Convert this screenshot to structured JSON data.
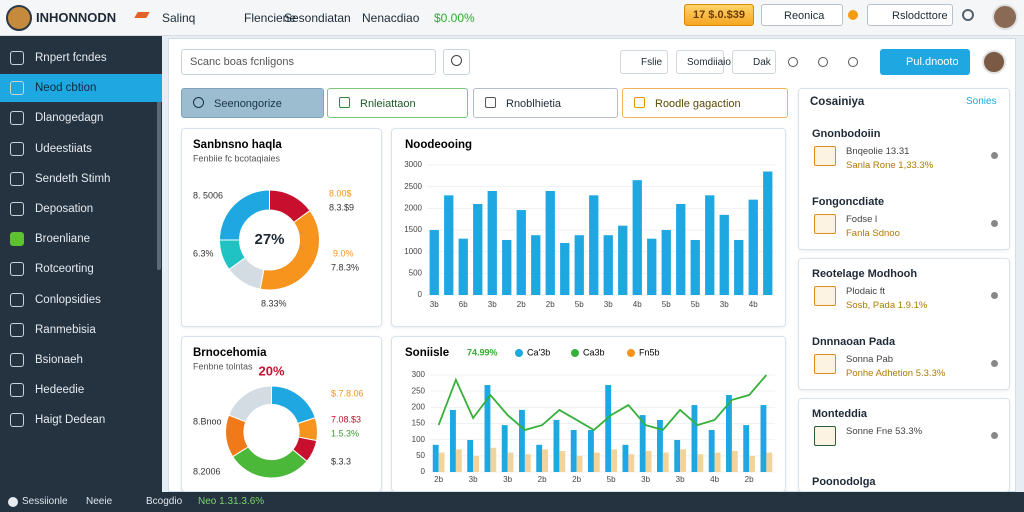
{
  "topbar": {
    "brand": "INHONNODN",
    "nav": [
      "Salinq",
      "Flenciene",
      "Sesondiatan",
      "Nenacdiao"
    ],
    "ticker": "$0.00%",
    "badge": "17 $.0.$39",
    "menu1": "Reonica",
    "menu2": "Rslodcttore"
  },
  "sidebar": {
    "items": [
      "Rnpert fcndes",
      "Neod cbtion",
      "Dlanogedagn",
      "Udeestiiats",
      "Sendeth Stimh",
      "Deposation",
      "Broenliane",
      "Rotceorting",
      "Conlopsidies",
      "Ranmebisia",
      "Bsionaeh",
      "Hedeedie",
      "Haigt Dedean"
    ],
    "active": 1
  },
  "toolbar": {
    "search": "Scanc boas fcnligons",
    "buttons": [
      "Fslie",
      "Somdiiaio",
      "Dak"
    ],
    "primary": "Pul.dnooto"
  },
  "filters": [
    "Seenongorize",
    "Rnleiattaon",
    "Rnoblhietia",
    "Roodle gagaction"
  ],
  "chart_data": [
    {
      "type": "donut",
      "title": "Sanbnsno haqla",
      "subtitle": "Fenbiie fc bcotaqiaies",
      "center_label": "27%",
      "values": [
        15,
        38,
        12,
        10,
        25
      ],
      "colors": [
        "#c8102e",
        "#f7941d",
        "#d3dbe3",
        "#1fc3c3",
        "#1ea7e1"
      ],
      "annotations": [
        "8. 5006",
        "6.3%",
        "8.00$",
        "8.3.$9",
        "9.0%",
        "7.8.3%",
        "8.33%"
      ]
    },
    {
      "type": "bar",
      "title": "Noodeooing",
      "categories": [
        "3b",
        null,
        "6b",
        null,
        "3b",
        null,
        "2b",
        null,
        "2b",
        null,
        "5b",
        null,
        "3b",
        null,
        "4b",
        null,
        "5b",
        null,
        "5b",
        null,
        "3b",
        null,
        "4b",
        null
      ],
      "values": [
        1500,
        2300,
        1300,
        2100,
        2400,
        1270,
        1960,
        1380,
        2400,
        1200,
        1380,
        2300,
        1380,
        1600,
        2650,
        1300,
        1500,
        2100,
        1270,
        2300,
        1850,
        1270,
        2200,
        2850
      ],
      "color": "#1ea7e1",
      "ylim": [
        0,
        3000
      ],
      "yticks": [
        0,
        500,
        1000,
        1500,
        2000,
        2500,
        3000
      ]
    },
    {
      "type": "donut",
      "title": "Brnocehomia",
      "subtitle": "Fenbne tolntas",
      "center_label": "20%",
      "values": [
        20,
        8,
        8,
        30,
        15,
        19
      ],
      "colors": [
        "#1ea7e1",
        "#f7941d",
        "#c8102e",
        "#4cb83a",
        "#f07a1a",
        "#d3dbe3"
      ],
      "annotations": [
        "8.Bnoo",
        "8.2006",
        "$.7.8.06",
        "7.08.$3",
        "1.5.3%",
        "$.3.3"
      ]
    },
    {
      "type": "combo",
      "title": "Soniisle",
      "badge": "74.99%",
      "categories": [
        "2b",
        null,
        "3b",
        null,
        "3b",
        null,
        "2b",
        null,
        "2b",
        null,
        "5b",
        null,
        "3b",
        null,
        "3b",
        null,
        "4b",
        null,
        "2b",
        null
      ],
      "ylim": [
        0,
        300
      ],
      "yticks": [
        0,
        50,
        100,
        150,
        200,
        250,
        300
      ],
      "series": [
        {
          "name": "Ca'3b",
          "color": "#1ea7e1",
          "kind": "bar",
          "values": [
            84,
            192,
            99,
            269,
            145,
            192,
            84,
            161,
            130,
            130,
            269,
            84,
            176,
            161,
            99,
            207,
            130,
            238,
            145,
            207
          ]
        },
        {
          "name": "Ca3b",
          "color": "#36b03a",
          "kind": "line",
          "values": [
            145,
            285,
            167,
            238,
            176,
            130,
            145,
            192,
            161,
            130,
            176,
            207,
            145,
            130,
            192,
            145,
            161,
            223,
            238,
            300
          ]
        },
        {
          "name": "Fn5b",
          "color": "#f2d49a",
          "kind": "bar",
          "values": [
            60,
            70,
            50,
            75,
            60,
            55,
            70,
            65,
            50,
            60,
            70,
            55,
            65,
            60,
            70,
            55,
            60,
            65,
            50,
            60
          ]
        }
      ]
    }
  ],
  "panel": {
    "title": "Cosainiya",
    "link": "Sonies",
    "cards": [
      {
        "sections": [
          {
            "title": "Gnonbodoiin",
            "lines": [
              "Bnqeolie 13.31",
              "Sanla Rone 1,33.3%"
            ]
          },
          {
            "title": "Fongoncdiate",
            "lines": [
              "Fodse l",
              "Fanla Sdnoo"
            ]
          }
        ]
      },
      {
        "sections": [
          {
            "title": "Reotelage Modhooh",
            "lines": [
              "Plodaic ft",
              "Sosb, Pada 1.9.1%"
            ]
          },
          {
            "title": "Dnnnaoan Pada",
            "lines": [
              "Sonna Pab",
              "Ponhe Adhetion 5.3.3%"
            ]
          }
        ]
      },
      {
        "sections": [
          {
            "title": "Monteddia",
            "lines": [
              "Sonne Fne 53.3%"
            ]
          },
          {
            "title": "Poonodolga",
            "lines": []
          }
        ]
      }
    ]
  },
  "statusbar": [
    "Sessiionle",
    "Neeie",
    "Bcogdio",
    "Neo 1.31.3.6%"
  ]
}
